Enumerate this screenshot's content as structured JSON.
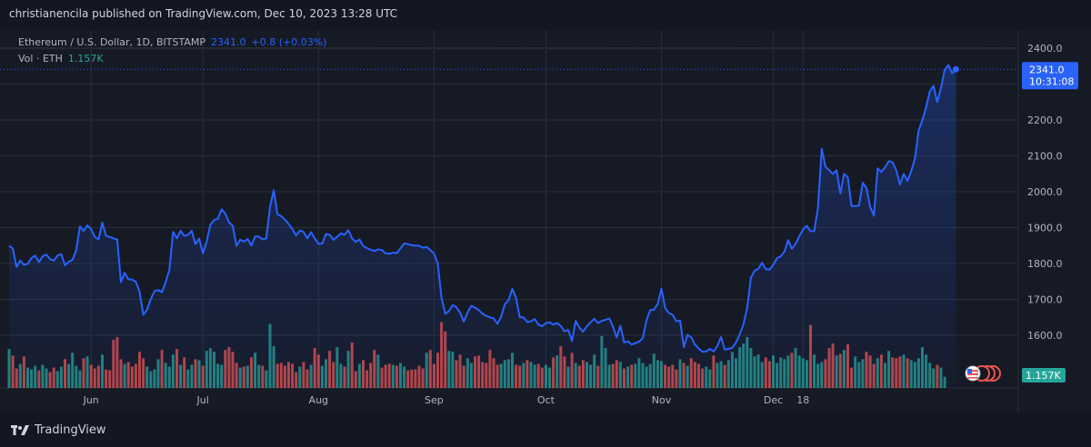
{
  "header": {
    "publisher": "christianencila published on TradingView.com, Dec 10, 2023 13:28 UTC"
  },
  "legend": {
    "symbol": "Ethereum / U.S. Dollar, 1D, BITSTAMP",
    "last": "2341.0",
    "change": "+0.8 (+0.03%)",
    "volume_label": "Vol · ETH",
    "volume_value": "1.157K"
  },
  "price_tag": {
    "price": "2341.0",
    "countdown": "10:31:08"
  },
  "volume_tag": "1.157K",
  "footer": {
    "brand": "TradingView"
  },
  "colors": {
    "line": "#2962ff",
    "up": "#26a69a",
    "down": "#ef5350",
    "background": "#161a25",
    "grid": "#2a2e39"
  },
  "chart_data": {
    "type": "line",
    "title": "Ethereum / U.S. Dollar, 1D, BITSTAMP",
    "xlabel": "",
    "ylabel": "",
    "ylim": [
      1500,
      2430
    ],
    "y_ticks": [
      1600,
      1700,
      1800,
      1900,
      2000,
      2100,
      2200,
      2300,
      2400
    ],
    "x_ticks": [
      "Jun",
      "Jul",
      "Aug",
      "Sep",
      "Oct",
      "Nov",
      "Dec",
      "18"
    ],
    "grid": true,
    "series": [
      {
        "name": "ETH/USD",
        "x_start": "2023-05-10",
        "values": [
          1849,
          1842,
          1790,
          1808,
          1796,
          1799,
          1815,
          1822,
          1804,
          1820,
          1825,
          1812,
          1808,
          1822,
          1826,
          1795,
          1805,
          1810,
          1836,
          1903,
          1891,
          1906,
          1896,
          1874,
          1867,
          1914,
          1877,
          1874,
          1870,
          1867,
          1748,
          1774,
          1756,
          1755,
          1749,
          1721,
          1657,
          1671,
          1700,
          1723,
          1726,
          1720,
          1748,
          1782,
          1888,
          1870,
          1891,
          1877,
          1880,
          1891,
          1854,
          1869,
          1828,
          1861,
          1908,
          1921,
          1925,
          1951,
          1939,
          1915,
          1905,
          1849,
          1866,
          1861,
          1868,
          1850,
          1875,
          1875,
          1867,
          1870,
          1958,
          2004,
          1937,
          1932,
          1922,
          1910,
          1896,
          1878,
          1892,
          1888,
          1870,
          1887,
          1870,
          1855,
          1855,
          1882,
          1880,
          1866,
          1874,
          1884,
          1880,
          1893,
          1870,
          1860,
          1867,
          1848,
          1843,
          1838,
          1835,
          1839,
          1838,
          1828,
          1827,
          1830,
          1829,
          1842,
          1856,
          1854,
          1851,
          1850,
          1849,
          1844,
          1846,
          1837,
          1828,
          1800,
          1705,
          1660,
          1667,
          1684,
          1678,
          1663,
          1638,
          1664,
          1682,
          1677,
          1670,
          1660,
          1654,
          1650,
          1647,
          1632,
          1652,
          1686,
          1698,
          1729,
          1704,
          1650,
          1650,
          1637,
          1639,
          1645,
          1630,
          1625,
          1634,
          1636,
          1630,
          1634,
          1626,
          1611,
          1615,
          1584,
          1640,
          1621,
          1610,
          1625,
          1636,
          1646,
          1634,
          1640,
          1643,
          1647,
          1624,
          1594,
          1626,
          1580,
          1583,
          1574,
          1578,
          1582,
          1592,
          1642,
          1670,
          1671,
          1687,
          1730,
          1676,
          1662,
          1657,
          1639,
          1641,
          1567,
          1601,
          1594,
          1574,
          1563,
          1554,
          1555,
          1562,
          1555,
          1570,
          1595,
          1560,
          1562,
          1565,
          1580,
          1602,
          1630,
          1675,
          1760,
          1780,
          1785,
          1802,
          1784,
          1783,
          1796,
          1815,
          1820,
          1833,
          1865,
          1841,
          1855,
          1876,
          1895,
          1905,
          1890,
          1890,
          1955,
          2120,
          2070,
          2060,
          2049,
          2060,
          1995,
          2050,
          2040,
          1960,
          1960,
          1961,
          2025,
          2010,
          1958,
          1933,
          2065,
          2055,
          2068,
          2085,
          2082,
          2060,
          2020,
          2050,
          2030,
          2057,
          2092,
          2170,
          2200,
          2235,
          2280,
          2295,
          2250,
          2290,
          2340,
          2353,
          2330,
          2341
        ]
      },
      {
        "name": "Vol · ETH",
        "values": [
          4.2,
          3.5,
          2.1,
          2.6,
          3.4,
          2.2,
          2.0,
          2.4,
          1.9,
          2.5,
          2.1,
          1.7,
          2.2,
          1.8,
          2.3,
          3.1,
          2.6,
          3.8,
          2.4,
          1.9,
          3.2,
          3.4,
          2.5,
          2.1,
          2.4,
          3.6,
          2.0,
          1.9,
          5.2,
          5.5,
          3.1,
          2.6,
          2.8,
          2.3,
          2.6,
          3.9,
          3.2,
          2.3,
          1.8,
          2.0,
          3.1,
          4.1,
          2.7,
          2.3,
          3.6,
          4.2,
          2.5,
          3.3,
          2.0,
          2.5,
          3.1,
          3.0,
          2.4,
          4.0,
          4.3,
          3.9,
          2.6,
          2.5,
          4.1,
          4.4,
          3.9,
          2.7,
          2.2,
          2.3,
          2.4,
          3.3,
          3.8,
          2.5,
          2.4,
          1.9,
          6.9,
          4.5,
          2.6,
          2.7,
          2.4,
          2.8,
          2.6,
          1.7,
          2.3,
          2.8,
          2.0,
          2.5,
          4.3,
          3.6,
          2.4,
          3.1,
          4.0,
          2.8,
          4.4,
          2.6,
          2.3,
          4.0,
          4.9,
          1.8,
          2.6,
          3.0,
          1.9,
          2.7,
          4.1,
          3.6,
          2.2,
          2.5,
          2.6,
          2.5,
          2.4,
          2.7,
          2.3,
          1.9,
          2.0,
          2.0,
          2.4,
          2.1,
          3.8,
          4.1,
          2.6,
          3.8,
          7.1,
          6.1,
          4.0,
          3.9,
          3.0,
          3.6,
          2.4,
          3.2,
          2.7,
          3.4,
          3.5,
          2.8,
          2.7,
          4.1,
          3.2,
          2.5,
          2.6,
          3.0,
          3.1,
          3.8,
          2.5,
          2.4,
          2.7,
          3.0,
          2.8,
          2.5,
          2.6,
          2.2,
          2.5,
          2.2,
          3.3,
          3.5,
          4.5,
          3.4,
          2.3,
          3.8,
          2.7,
          2.4,
          3.0,
          2.8,
          2.5,
          3.6,
          2.4,
          5.6,
          4.3,
          2.5,
          2.6,
          3.0,
          2.8,
          2.1,
          2.3,
          2.5,
          2.6,
          3.2,
          2.7,
          2.3,
          2.6,
          3.7,
          3.0,
          2.9,
          2.5,
          2.3,
          2.5,
          2.0,
          3.1,
          2.7,
          2.4,
          3.2,
          2.8,
          2.6,
          2.1,
          2.3,
          2.0,
          3.5,
          2.7,
          2.9,
          2.5,
          3.0,
          3.9,
          3.2,
          4.4,
          4.8,
          5.5,
          4.3,
          3.4,
          3.6,
          2.8,
          3.3,
          2.9,
          3.5,
          2.7,
          3.3,
          3.1,
          3.5,
          3.8,
          4.3,
          3.5,
          3.2,
          3.0,
          6.8,
          3.6,
          2.6,
          2.8,
          3.1,
          4.3,
          4.8,
          3.5,
          3.7,
          4.1,
          4.7,
          2.2,
          3.4,
          2.8,
          3.1,
          3.9,
          3.5,
          2.6,
          3.2,
          3.6,
          2.7,
          4.0,
          3.3,
          3.2,
          3.4,
          3.6,
          3.2,
          3.0,
          2.8,
          3.2,
          4.4,
          3.6,
          2.7,
          2.1,
          2.5,
          2.2,
          1.2
        ]
      }
    ],
    "last_value_label": "2341.0",
    "countdown_label": "10:31:08",
    "volume_last_label": "1.157K"
  }
}
